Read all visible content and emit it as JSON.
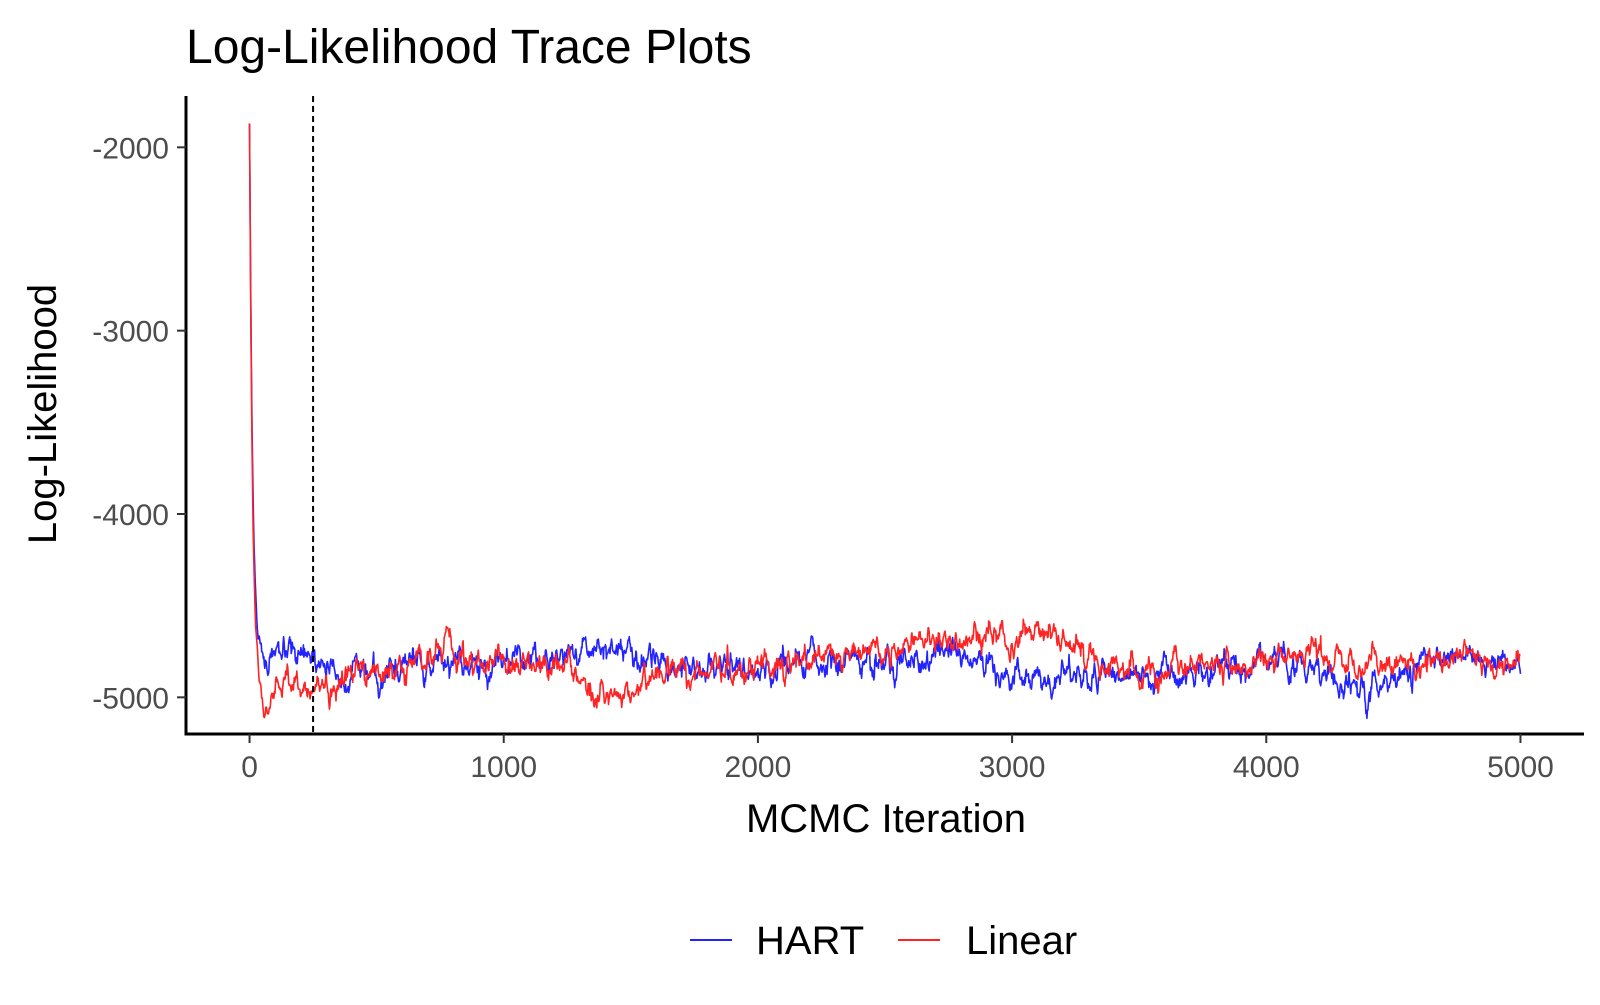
{
  "chart_data": {
    "type": "line",
    "title": "Log-Likelihood Trace Plots",
    "xlabel": "MCMC Iteration",
    "ylabel": "Log-Likelihood",
    "xlim": [
      -250,
      5250
    ],
    "ylim": [
      -5200,
      -1720
    ],
    "x_ticks": [
      0,
      1000,
      2000,
      3000,
      4000,
      5000
    ],
    "x_tick_labels": [
      "0",
      "1000",
      "2000",
      "3000",
      "4000",
      "5000"
    ],
    "y_ticks": [
      -2000,
      -3000,
      -4000,
      -5000
    ],
    "y_tick_labels": [
      "-2000",
      "-3000",
      "-4000",
      "-5000"
    ],
    "burn_in_line": {
      "x": 250,
      "style": "dashed",
      "color": "#000000"
    },
    "grid": false,
    "legend_position": "bottom",
    "iterations": 5000,
    "series": [
      {
        "name": "HART",
        "color": "#2323ff",
        "initial_value": -1870,
        "stationary_mean": -4815,
        "fluctuation_sd": 45,
        "anchors": [
          [
            80,
            -4800
          ],
          [
            300,
            -4830
          ],
          [
            400,
            -4900
          ],
          [
            600,
            -4830
          ],
          [
            800,
            -4820
          ],
          [
            1000,
            -4800
          ],
          [
            1200,
            -4780
          ],
          [
            1300,
            -4720
          ],
          [
            1450,
            -4740
          ],
          [
            1600,
            -4790
          ],
          [
            1800,
            -4840
          ],
          [
            2000,
            -4820
          ],
          [
            2200,
            -4810
          ],
          [
            2500,
            -4800
          ],
          [
            2800,
            -4790
          ],
          [
            3000,
            -4850
          ],
          [
            3200,
            -4880
          ],
          [
            3500,
            -4900
          ],
          [
            3800,
            -4840
          ],
          [
            4000,
            -4820
          ],
          [
            4200,
            -4860
          ],
          [
            4430,
            -4960
          ],
          [
            4600,
            -4800
          ],
          [
            4800,
            -4760
          ],
          [
            5000,
            -4820
          ]
        ]
      },
      {
        "name": "Linear",
        "color": "#ff2323",
        "initial_value": -1870,
        "stationary_mean": -4815,
        "fluctuation_sd": 45,
        "anchors": [
          [
            80,
            -4990
          ],
          [
            250,
            -4940
          ],
          [
            400,
            -4880
          ],
          [
            600,
            -4830
          ],
          [
            700,
            -4780
          ],
          [
            760,
            -4700
          ],
          [
            900,
            -4790
          ],
          [
            1100,
            -4840
          ],
          [
            1300,
            -4880
          ],
          [
            1420,
            -4990
          ],
          [
            1600,
            -4880
          ],
          [
            1800,
            -4860
          ],
          [
            2000,
            -4830
          ],
          [
            2300,
            -4760
          ],
          [
            2600,
            -4720
          ],
          [
            2900,
            -4680
          ],
          [
            3100,
            -4650
          ],
          [
            3300,
            -4760
          ],
          [
            3500,
            -4870
          ],
          [
            3700,
            -4840
          ],
          [
            4000,
            -4820
          ],
          [
            4200,
            -4780
          ],
          [
            4400,
            -4840
          ],
          [
            4600,
            -4790
          ],
          [
            4800,
            -4790
          ],
          [
            5000,
            -4830
          ]
        ]
      }
    ]
  }
}
